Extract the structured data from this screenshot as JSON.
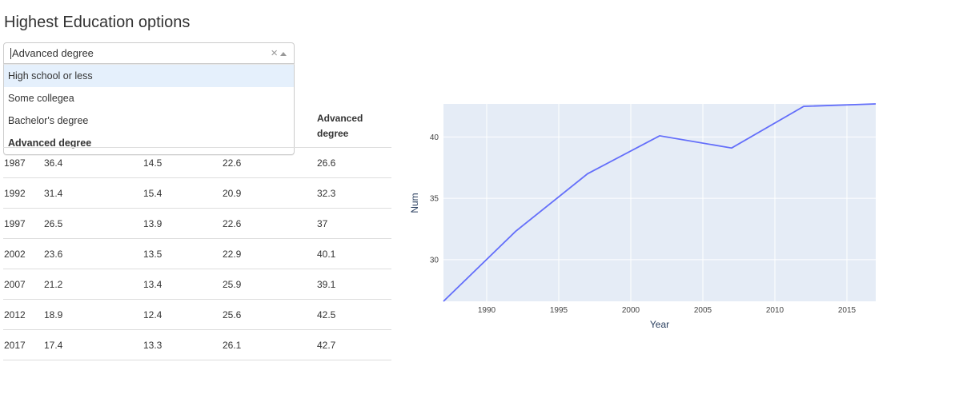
{
  "page": {
    "title": "Highest Education options"
  },
  "dropdown": {
    "value": "Advanced degree",
    "clear_glyph": "×",
    "options": [
      "High school or less",
      "Some collegea",
      "Bachelor's degree",
      "Advanced degree"
    ],
    "focused_index": 0,
    "selected_index": 3
  },
  "table": {
    "header_visible": [
      "Advanced degree"
    ],
    "rows": [
      [
        "1987",
        "36.4",
        "14.5",
        "22.6",
        "26.6"
      ],
      [
        "1992",
        "31.4",
        "15.4",
        "20.9",
        "32.3"
      ],
      [
        "1997",
        "26.5",
        "13.9",
        "22.6",
        "37"
      ],
      [
        "2002",
        "23.6",
        "13.5",
        "22.9",
        "40.1"
      ],
      [
        "2007",
        "21.2",
        "13.4",
        "25.9",
        "39.1"
      ],
      [
        "2012",
        "18.9",
        "12.4",
        "25.6",
        "42.5"
      ],
      [
        "2017",
        "17.4",
        "13.3",
        "26.1",
        "42.7"
      ]
    ]
  },
  "chart_data": {
    "type": "line",
    "xlabel": "Year",
    "ylabel": "Num",
    "x": [
      1987,
      1992,
      1997,
      2002,
      2007,
      2012,
      2017
    ],
    "series": [
      {
        "values": [
          26.6,
          32.3,
          37,
          40.1,
          39.1,
          42.5,
          42.7
        ],
        "color": "#636efa"
      }
    ],
    "xlim": [
      1987,
      2017
    ],
    "ylim": [
      26.6,
      42.7
    ],
    "xticks": [
      1990,
      1995,
      2000,
      2005,
      2010,
      2015
    ],
    "yticks": [
      30,
      35,
      40
    ],
    "grid": true,
    "background": "#e5ecf6"
  }
}
